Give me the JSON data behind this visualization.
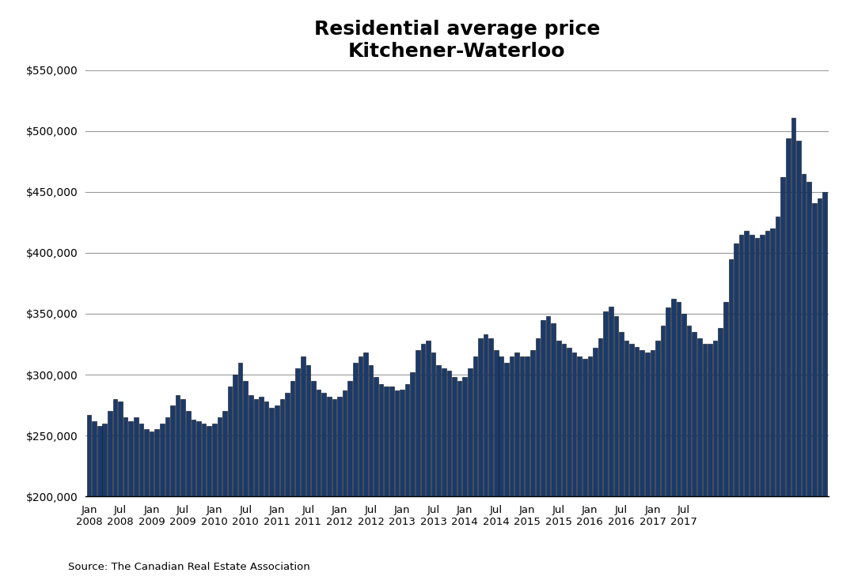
{
  "title": "Residential average price\nKitchener-Waterloo",
  "source": "Source: The Canadian Real Estate Association",
  "bar_color": "#1a3a6b",
  "bar_edge_color": "#111111",
  "ylim": [
    200000,
    550000
  ],
  "yticks": [
    200000,
    250000,
    300000,
    350000,
    400000,
    450000,
    500000,
    550000
  ],
  "background_color": "#ffffff",
  "values": [
    267000,
    262000,
    258000,
    260000,
    270000,
    280000,
    278000,
    265000,
    262000,
    265000,
    260000,
    255000,
    253000,
    255000,
    260000,
    265000,
    275000,
    283000,
    280000,
    270000,
    263000,
    262000,
    260000,
    258000,
    260000,
    265000,
    270000,
    290000,
    300000,
    310000,
    295000,
    283000,
    280000,
    282000,
    278000,
    273000,
    275000,
    280000,
    285000,
    295000,
    305000,
    315000,
    308000,
    295000,
    288000,
    285000,
    282000,
    280000,
    282000,
    287000,
    295000,
    310000,
    315000,
    318000,
    308000,
    298000,
    292000,
    290000,
    290000,
    287000,
    288000,
    292000,
    302000,
    320000,
    325000,
    328000,
    318000,
    308000,
    305000,
    303000,
    298000,
    295000,
    298000,
    305000,
    315000,
    330000,
    333000,
    330000,
    320000,
    315000,
    310000,
    315000,
    318000,
    315000,
    315000,
    320000,
    330000,
    345000,
    348000,
    342000,
    328000,
    325000,
    322000,
    318000,
    315000,
    313000,
    315000,
    322000,
    330000,
    352000,
    356000,
    348000,
    335000,
    328000,
    325000,
    323000,
    320000,
    318000,
    320000,
    328000,
    340000,
    355000,
    362000,
    360000,
    350000,
    340000,
    335000,
    330000,
    325000,
    325000,
    328000,
    338000,
    360000,
    395000,
    408000,
    415000,
    418000,
    415000,
    412000,
    415000,
    418000,
    420000,
    430000,
    462000,
    494000,
    511000,
    492000,
    465000,
    458000,
    441000,
    445000,
    450000
  ],
  "x_tick_positions": [
    0,
    6,
    12,
    18,
    24,
    30,
    36,
    42,
    48,
    54,
    60,
    66,
    72,
    78,
    84,
    90,
    96,
    102,
    108,
    114
  ],
  "x_tick_labels": [
    "Jan\n2008",
    "Jul\n2008",
    "Jan\n2009",
    "Jul\n2009",
    "Jan\n2010",
    "Jul\n2010",
    "Jan\n2011",
    "Jul\n2011",
    "Jan\n2012",
    "Jul\n2012",
    "Jan\n2013",
    "Jul\n2013",
    "Jan\n2014",
    "Jul\n2014",
    "Jan\n2015",
    "Jul\n2015",
    "Jan\n2016",
    "Jul\n2016",
    "Jan\n2017",
    "Jul\n2017"
  ]
}
